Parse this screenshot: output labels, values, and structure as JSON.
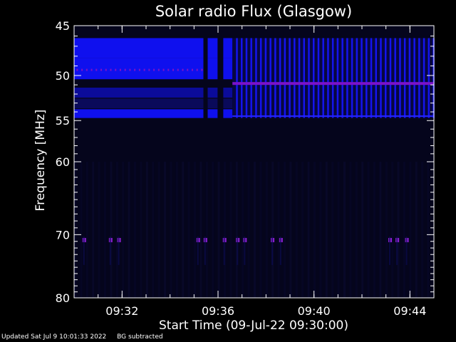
{
  "chart_data": {
    "type": "heatmap",
    "title": "Solar radio Flux (Glasgow)",
    "xlabel": "Start Time (09-Jul-22 09:30:00)",
    "ylabel": "Frequency [MHz]",
    "x_range": [
      "09:30:00",
      "09:45:00"
    ],
    "ylim": [
      45,
      80
    ],
    "y_scale": "log",
    "y_ticks": [
      45,
      50,
      55,
      60,
      70,
      80
    ],
    "x_ticks": [
      "09:32",
      "09:36",
      "09:40",
      "09:44"
    ],
    "colormap": [
      "#000000",
      "#1a1a8c",
      "#0000ff",
      "#6a0dad"
    ],
    "interference_bands": [
      {
        "f_low": 46.2,
        "f_high": 48.2,
        "level": "strong"
      },
      {
        "f_low": 48.2,
        "f_high": 50.4,
        "level": "strong"
      },
      {
        "f_low": 51.3,
        "f_high": 52.4,
        "level": "medium"
      },
      {
        "f_low": 52.5,
        "f_high": 53.6,
        "level": "weak"
      },
      {
        "f_low": 53.7,
        "f_high": 54.7,
        "level": "strong"
      }
    ],
    "data_gaps_minutes": [
      5.45,
      6.1
    ],
    "burst_onset_minute": 6.6,
    "spike_frequency_mhz": 70.7,
    "spike_minutes": [
      0.35,
      1.45,
      1.8,
      5.1,
      5.4,
      6.2,
      6.75,
      7.05,
      8.2,
      8.55,
      13.1,
      13.4,
      13.8
    ]
  },
  "footer": {
    "updated": "Updated Sat Jul  9 10:01:33 2022",
    "note": "BG subtracted"
  }
}
